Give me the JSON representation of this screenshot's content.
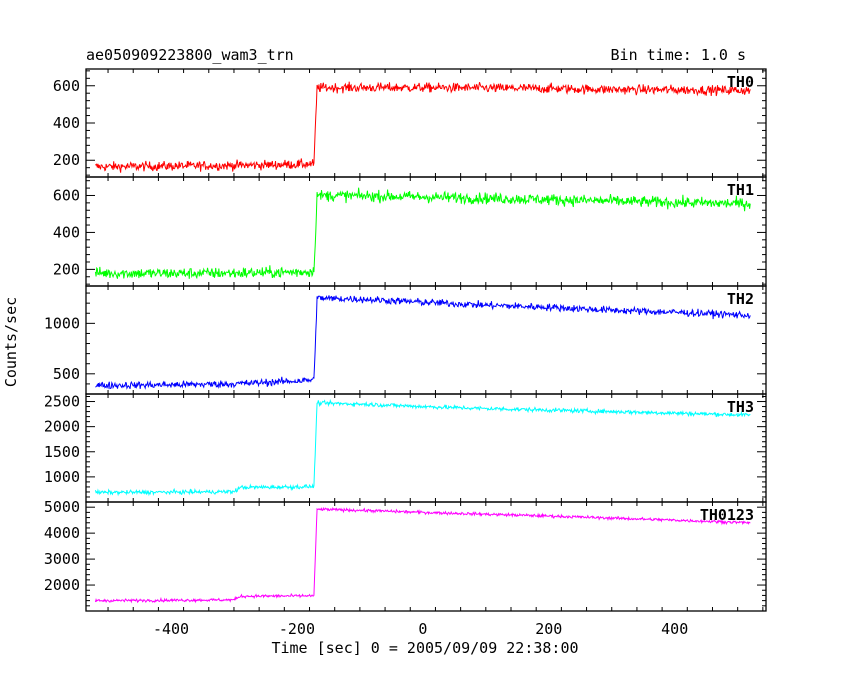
{
  "chart_data": {
    "type": "line",
    "title": "ae050909223800_wam3_trn",
    "subtitle": "Bin time: 1.0 s",
    "xlabel": "Time [sec] 0 = 2005/09/09 22:38:00",
    "ylabel": "Counts/sec",
    "xlim": [
      -535,
      545
    ],
    "x_ticks": [
      -400,
      -200,
      0,
      200,
      400
    ],
    "grid": false,
    "panels": [
      {
        "name": "TH0",
        "color": "#ff0000",
        "ylim": [
          110,
          690
        ],
        "y_ticks": [
          200,
          400,
          600
        ],
        "x": [
          -520,
          -420,
          -300,
          -200,
          -173,
          -168,
          -100,
          0,
          100,
          200,
          300,
          400,
          520
        ],
        "values": [
          165,
          168,
          172,
          178,
          180,
          590,
          590,
          590,
          588,
          585,
          580,
          578,
          575
        ],
        "noise": 25,
        "series_range": [
          -520,
          520
        ]
      },
      {
        "name": "TH1",
        "color": "#00ff00",
        "ylim": [
          110,
          700
        ],
        "y_ticks": [
          200,
          400,
          600
        ],
        "x": [
          -520,
          -420,
          -300,
          -200,
          -173,
          -168,
          -100,
          0,
          100,
          200,
          300,
          400,
          520
        ],
        "values": [
          180,
          178,
          180,
          185,
          190,
          600,
          598,
          592,
          585,
          578,
          570,
          562,
          555
        ],
        "noise": 30,
        "series_range": [
          -520,
          520
        ]
      },
      {
        "name": "TH2",
        "color": "#0000ff",
        "ylim": [
          300,
          1370
        ],
        "y_ticks": [
          500,
          1000
        ],
        "x": [
          -520,
          -420,
          -300,
          -200,
          -173,
          -168,
          -100,
          0,
          100,
          200,
          300,
          400,
          520
        ],
        "values": [
          385,
          390,
          400,
          430,
          440,
          1250,
          1240,
          1210,
          1180,
          1160,
          1130,
          1110,
          1080
        ],
        "noise": 35,
        "series_range": [
          -520,
          520
        ]
      },
      {
        "name": "TH3",
        "color": "#00ffff",
        "ylim": [
          500,
          2650
        ],
        "y_ticks": [
          1000,
          1500,
          2000,
          2500
        ],
        "x": [
          -520,
          -420,
          -300,
          -290,
          -200,
          -173,
          -168,
          -100,
          0,
          100,
          200,
          300,
          400,
          520
        ],
        "values": [
          690,
          695,
          705,
          790,
          800,
          810,
          2470,
          2450,
          2400,
          2360,
          2330,
          2300,
          2270,
          2230
        ],
        "noise": 40,
        "series_range": [
          -520,
          520
        ]
      },
      {
        "name": "TH0123",
        "color": "#ff00ff",
        "ylim": [
          1000,
          5200
        ],
        "y_ticks": [
          2000,
          3000,
          4000,
          5000
        ],
        "x": [
          -520,
          -420,
          -300,
          -290,
          -200,
          -173,
          -168,
          -100,
          0,
          100,
          200,
          300,
          400,
          520
        ],
        "values": [
          1400,
          1410,
          1430,
          1570,
          1580,
          1590,
          4920,
          4880,
          4800,
          4730,
          4660,
          4580,
          4500,
          4400
        ],
        "noise": 55,
        "series_range": [
          -520,
          520
        ]
      }
    ]
  }
}
